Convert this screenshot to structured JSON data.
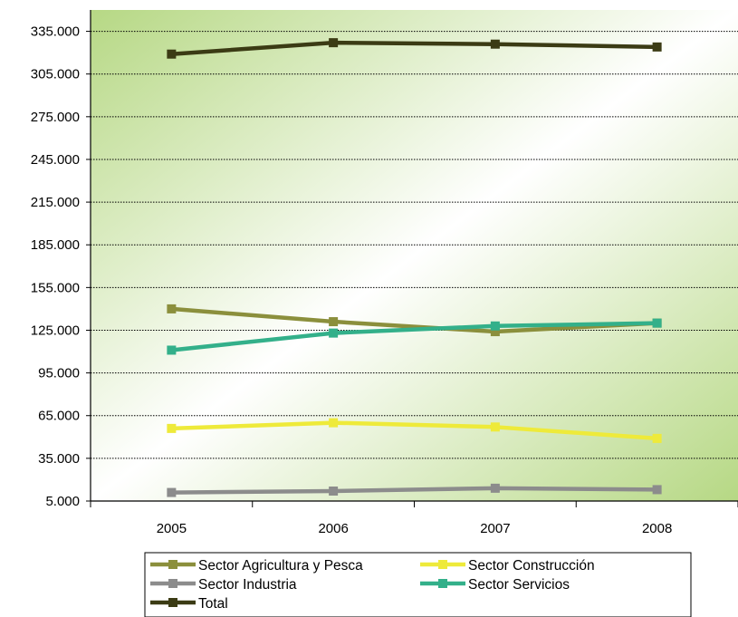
{
  "chart_data": {
    "type": "line",
    "categories": [
      "2005",
      "2006",
      "2007",
      "2008"
    ],
    "y_tick_labels": [
      "5.000",
      "35.000",
      "65.000",
      "95.000",
      "125.000",
      "155.000",
      "185.000",
      "215.000",
      "245.000",
      "275.000",
      "305.000",
      "335.000"
    ],
    "y_ticks": [
      5000,
      35000,
      65000,
      95000,
      125000,
      155000,
      185000,
      215000,
      245000,
      275000,
      305000,
      335000
    ],
    "ylim": [
      5000,
      350000
    ],
    "grid": true,
    "legend_position": "bottom",
    "series": [
      {
        "name": "Sector Agricultura y Pesca",
        "color": "#8b8f3c",
        "values": [
          140000,
          131000,
          124000,
          130000
        ]
      },
      {
        "name": "Sector Construcción",
        "color": "#eeea3a",
        "values": [
          56000,
          60000,
          57000,
          49000
        ]
      },
      {
        "name": "Sector Industria",
        "color": "#8c8c8c",
        "values": [
          11000,
          12000,
          14000,
          13000
        ]
      },
      {
        "name": "Sector Servicios",
        "color": "#33b08a",
        "values": [
          111000,
          123000,
          128000,
          130000
        ]
      },
      {
        "name": "Total",
        "color": "#3b3b14",
        "values": [
          319000,
          327000,
          326000,
          324000
        ]
      }
    ],
    "plot_background": {
      "start": "#b6d884",
      "mid": "#ffffff",
      "end": "#b6d884"
    }
  }
}
